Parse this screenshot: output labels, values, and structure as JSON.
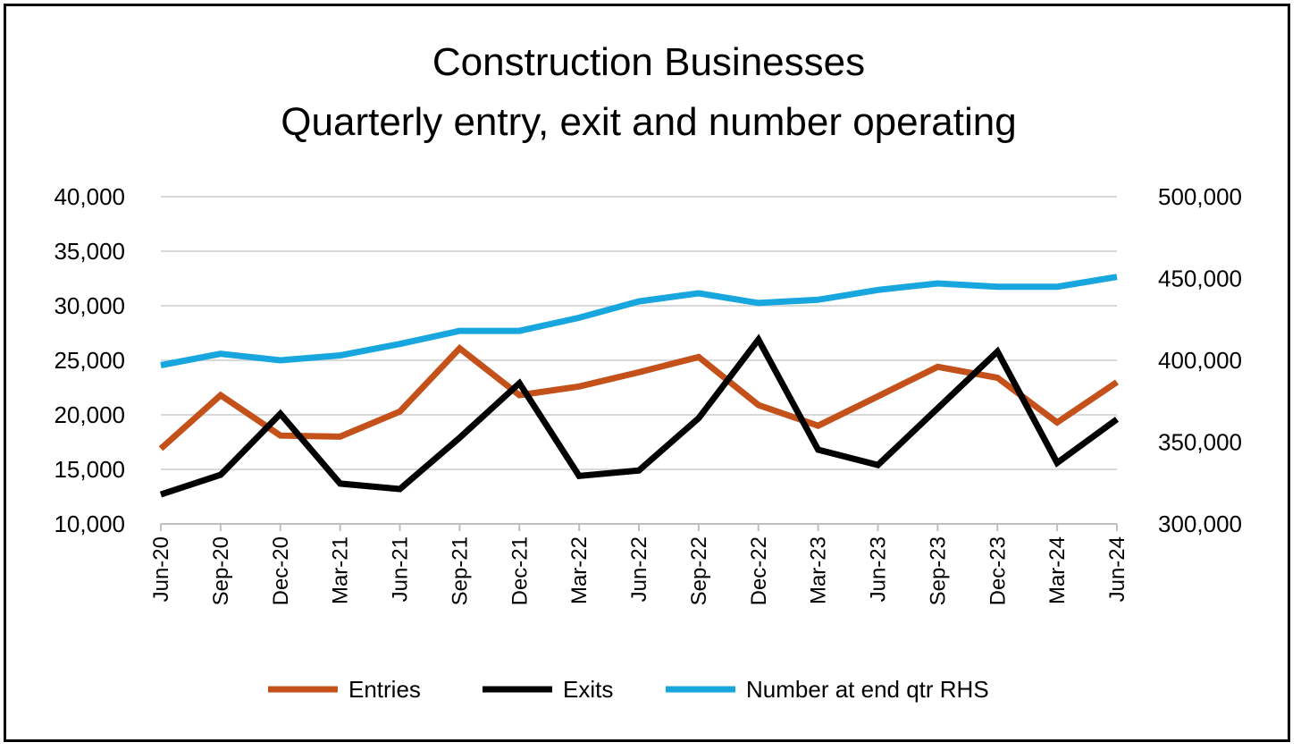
{
  "chart_data": {
    "type": "line",
    "title": "Construction Businesses",
    "subtitle": "Quarterly entry, exit and number operating",
    "categories": [
      "Jun-20",
      "Sep-20",
      "Dec-20",
      "Mar-21",
      "Jun-21",
      "Sep-21",
      "Dec-21",
      "Mar-22",
      "Jun-22",
      "Sep-22",
      "Dec-22",
      "Mar-23",
      "Jun-23",
      "Sep-23",
      "Dec-23",
      "Mar-24",
      "Jun-24"
    ],
    "y_left": {
      "ylim": [
        10000,
        40000
      ],
      "ticks": [
        "10,000",
        "15,000",
        "20,000",
        "25,000",
        "30,000",
        "35,000",
        "40,000"
      ]
    },
    "y_right": {
      "ylim": [
        300000,
        500000
      ],
      "ticks": [
        "300,000",
        "350,000",
        "400,000",
        "450,000",
        "500,000"
      ]
    },
    "grid": true,
    "legend_position": "bottom",
    "series": [
      {
        "name": "Entries",
        "axis": "left",
        "color": "#C4501A",
        "values": [
          16900,
          21800,
          18100,
          18000,
          20300,
          26100,
          21800,
          22600,
          23900,
          25300,
          20900,
          19000,
          21700,
          24400,
          23400,
          19300,
          23000
        ]
      },
      {
        "name": "Exits",
        "axis": "left",
        "color": "#000000",
        "values": [
          12700,
          14500,
          20100,
          13700,
          13200,
          17900,
          22900,
          14400,
          14900,
          19700,
          26900,
          16800,
          15400,
          20600,
          25800,
          15600,
          19600
        ]
      },
      {
        "name": "Number at end qtr RHS",
        "axis": "right",
        "color": "#18A6DF",
        "values": [
          397000,
          404000,
          400000,
          403000,
          410000,
          418000,
          418000,
          426000,
          436000,
          441000,
          435000,
          437000,
          443000,
          447000,
          445000,
          445000,
          451000
        ]
      }
    ]
  }
}
